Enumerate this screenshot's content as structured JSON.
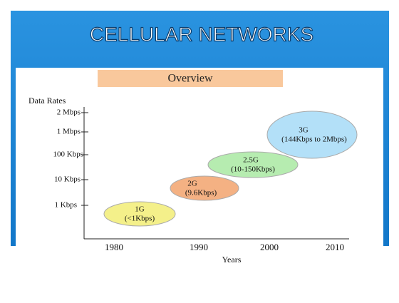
{
  "slide": {
    "title": "CELLULAR NETWORKS",
    "subtitle": "Overview"
  },
  "diagram": {
    "y_axis_title": "Data Rates",
    "y_labels": [
      "2 Mbps",
      "1 Mbps",
      "100 Kbps",
      "10 Kbps",
      "1 Kbps"
    ],
    "x_labels": [
      "1980",
      "1990",
      "2000",
      "2010"
    ],
    "x_axis_title": "Years",
    "bubbles": [
      {
        "name": "1G",
        "detail": "(<1Kbps)"
      },
      {
        "name": "2G",
        "detail": "(9.6Kbps)"
      },
      {
        "name": "2.5G",
        "detail": "(10-150Kbps)"
      },
      {
        "name": "3G",
        "detail": "(144Kbps to 2Mbps)"
      }
    ]
  }
}
